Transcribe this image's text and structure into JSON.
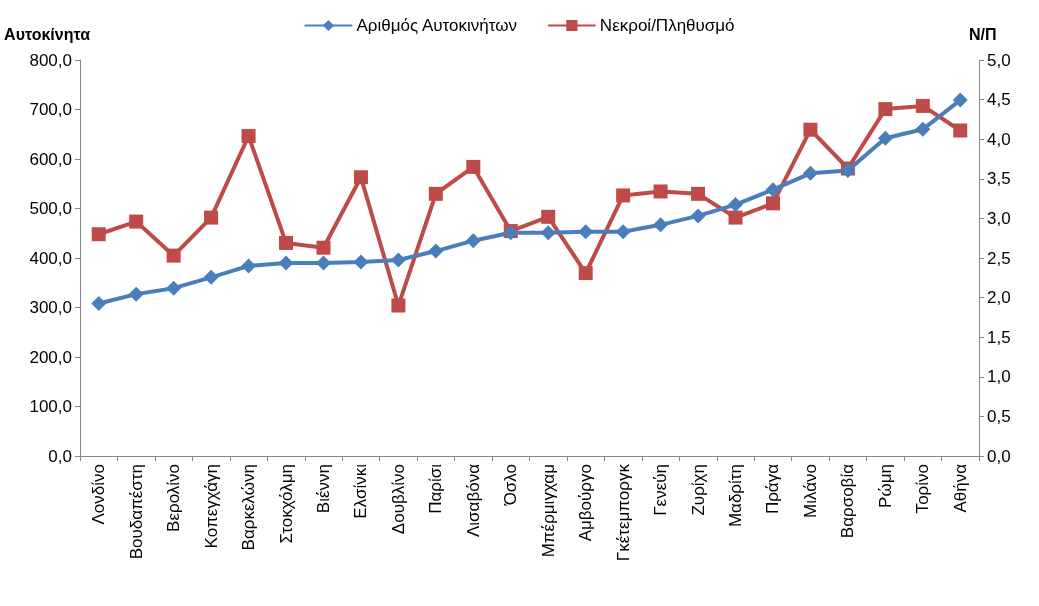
{
  "chart_data": {
    "type": "line",
    "ylabel": "Αυτοκίνητα",
    "y2label": "Ν/Π",
    "categories": [
      "Λονδίνο",
      "Βουδαπέστη",
      "Βερολίνο",
      "Κοπεγχάγη",
      "Βαρκελώνη",
      "Στοκχόλμη",
      "Βιέννη",
      "Ελσίνκι",
      "Δουβλίνο",
      "Παρίσι",
      "Λισαβόνα",
      "Όσλο",
      "Μπέρμιγχαμ",
      "Αμβούργο",
      "Γκέτεμποργκ",
      "Γενεύη",
      "Ζυρίχη",
      "Μαδρίτη",
      "Πράγα",
      "Μιλάνο",
      "Βαρσοβία",
      "Ρώμη",
      "Τορίνο",
      "Αθήνα"
    ],
    "series": [
      {
        "name": "Αριθμός Αυτοκινήτων",
        "color": "#4a7ebb",
        "marker": "diamond",
        "values": [
          308,
          327,
          339,
          361,
          384,
          390,
          390,
          392,
          396,
          414,
          435,
          451,
          451,
          453,
          453,
          467,
          485,
          508,
          538,
          571,
          577,
          642,
          660,
          719
        ]
      },
      {
        "name": "Νεκροί/Πληθυσμό",
        "color": "#be4b48",
        "marker": "square",
        "axis": "y2",
        "values": [
          2.8,
          2.96,
          2.53,
          3.01,
          4.04,
          2.69,
          2.63,
          3.52,
          1.9,
          3.31,
          3.65,
          2.84,
          3.02,
          2.31,
          3.29,
          3.34,
          3.31,
          3.01,
          3.19,
          4.12,
          3.63,
          4.38,
          4.42,
          4.11
        ]
      }
    ],
    "ylim": [
      0,
      800
    ],
    "yticks": [
      {
        "value": 0,
        "label": "0,0"
      },
      {
        "value": 100,
        "label": "100,0"
      },
      {
        "value": 200,
        "label": "200,0"
      },
      {
        "value": 300,
        "label": "300,0"
      },
      {
        "value": 400,
        "label": "400,0"
      },
      {
        "value": 500,
        "label": "500,0"
      },
      {
        "value": 600,
        "label": "600,0"
      },
      {
        "value": 700,
        "label": "700,0"
      },
      {
        "value": 800,
        "label": "800,0"
      }
    ],
    "y2lim": [
      0,
      5
    ],
    "y2ticks": [
      {
        "value": 0,
        "label": "0,0"
      },
      {
        "value": 0.5,
        "label": "0,5"
      },
      {
        "value": 1,
        "label": "1,0"
      },
      {
        "value": 1.5,
        "label": "1,5"
      },
      {
        "value": 2,
        "label": "2,0"
      },
      {
        "value": 2.5,
        "label": "2,5"
      },
      {
        "value": 3,
        "label": "3,0"
      },
      {
        "value": 3.5,
        "label": "3,5"
      },
      {
        "value": 4,
        "label": "4,0"
      },
      {
        "value": 4.5,
        "label": "4,5"
      },
      {
        "value": 5,
        "label": "5,0"
      }
    ],
    "grid": false,
    "legend": "top",
    "line_style": "solid"
  }
}
